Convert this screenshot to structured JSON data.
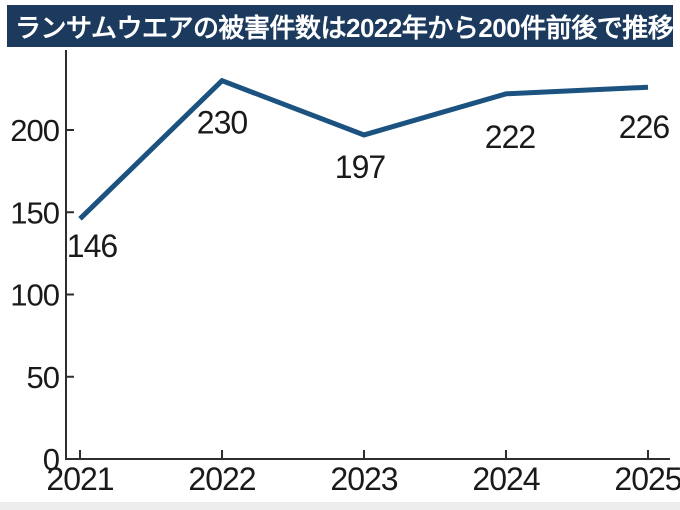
{
  "header": {
    "title": "ランサムウエアの被害件数は2022年から200件前後で推移"
  },
  "chart_data": {
    "type": "line",
    "title": "ランサムウエアの被害件数は2022年から200件前後で推移",
    "categories": [
      "2021",
      "2022",
      "2023",
      "2024",
      "2025"
    ],
    "values": [
      146,
      230,
      197,
      222,
      226
    ],
    "data_labels": [
      "146",
      "230",
      "197",
      "222",
      "226"
    ],
    "y_ticks": [
      "0",
      "50",
      "100",
      "150",
      "200"
    ],
    "y_tick_values": [
      0,
      50,
      100,
      150,
      200
    ],
    "ylim": [
      0,
      250
    ],
    "xlabel": "",
    "ylabel": "",
    "grid": false,
    "legend": "none",
    "line_color": "#1b527f"
  },
  "colors": {
    "title_bg": "#1c3a5e",
    "title_text": "#ffffff",
    "axis": "#2e2e2e",
    "label_text": "#1a1a1a",
    "background": "#ffffff",
    "footer_strip": "#ededed"
  }
}
